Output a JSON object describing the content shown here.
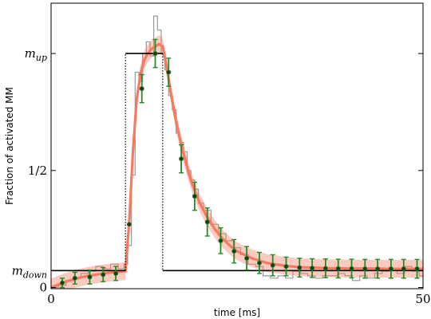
{
  "chart_data": {
    "type": "line",
    "xlabel": "time [ms]",
    "ylabel": "Fraction of activated MM",
    "xlim": [
      0,
      50
    ],
    "ylim": [
      -0.005,
      1.215
    ],
    "x_ticks": [
      {
        "value": 0,
        "label": "0"
      },
      {
        "value": 50,
        "label": "50"
      }
    ],
    "y_ticks": [
      {
        "value": 0,
        "label": "0"
      },
      {
        "value": 0.0724,
        "label": "m",
        "sub": "down"
      },
      {
        "value": 0.5,
        "label": "1/2"
      },
      {
        "value": 1.0,
        "label": "m",
        "sub": "up"
      }
    ],
    "stimulus_levels": {
      "m_down": 0.0724,
      "m_up": 1.0,
      "on_time_ms": 10,
      "off_time_ms": 15
    },
    "series": [
      {
        "role": "noisy-trace",
        "color": "#999999",
        "x": [
          0,
          1,
          2,
          3,
          4,
          5,
          6,
          7,
          8,
          9,
          9.8,
          10.3,
          10.8,
          11.3,
          11.8,
          12.3,
          12.8,
          13.3,
          13.8,
          14.3,
          14.8,
          15.3,
          15.8,
          16.3,
          16.8,
          17.3,
          17.8,
          18.3,
          18.8,
          19.3,
          19.8,
          20.5,
          21.5,
          22.5,
          23.5,
          24.5,
          25.5,
          26.5,
          27.5,
          28.5,
          29.5,
          30.5,
          31.5,
          32.5,
          33.5,
          34.5,
          35.5,
          36.5,
          37.5,
          38.5,
          39.5,
          40.5,
          41.5,
          42.5,
          43.5,
          44.5,
          45.5,
          46.5,
          47.5,
          48.5,
          49.5,
          50
        ],
        "y": [
          0.0,
          0.01,
          0.03,
          0.04,
          0.06,
          0.07,
          0.09,
          0.08,
          0.1,
          0.08,
          0.1,
          0.18,
          0.48,
          0.92,
          0.88,
          1.0,
          1.05,
          0.99,
          1.16,
          1.1,
          1.0,
          0.93,
          0.82,
          0.76,
          0.66,
          0.62,
          0.58,
          0.5,
          0.46,
          0.42,
          0.36,
          0.33,
          0.27,
          0.23,
          0.2,
          0.17,
          0.14,
          0.1,
          0.09,
          0.05,
          0.04,
          0.05,
          0.04,
          0.07,
          0.06,
          0.05,
          0.04,
          0.05,
          0.05,
          0.06,
          0.05,
          0.03,
          0.05,
          0.04,
          0.06,
          0.07,
          0.08,
          0.06,
          0.09,
          0.07,
          0.05,
          0.08
        ]
      },
      {
        "role": "mean-band",
        "color": "#f47a62",
        "band_halfwidth": 0.038,
        "x": [
          0,
          1,
          2,
          3,
          4,
          5,
          6,
          7,
          8,
          9,
          10,
          10.5,
          11,
          11.5,
          12,
          12.5,
          13,
          13.5,
          14,
          14.5,
          15,
          15.5,
          16,
          16.5,
          17,
          17.5,
          18,
          18.5,
          19,
          19.5,
          20,
          21,
          22,
          23,
          24,
          25,
          26,
          27,
          28,
          29,
          30,
          31,
          32,
          33,
          34,
          35,
          36,
          37,
          38,
          39,
          40,
          41,
          42,
          43,
          44,
          45,
          46,
          47,
          48,
          49,
          50
        ],
        "y": [
          0.0,
          0.013,
          0.025,
          0.035,
          0.043,
          0.05,
          0.055,
          0.06,
          0.064,
          0.067,
          0.07,
          0.28,
          0.58,
          0.8,
          0.91,
          0.97,
          1.0,
          1.02,
          1.03,
          1.04,
          1.03,
          0.95,
          0.85,
          0.76,
          0.68,
          0.61,
          0.55,
          0.49,
          0.44,
          0.4,
          0.36,
          0.3,
          0.25,
          0.21,
          0.18,
          0.155,
          0.14,
          0.125,
          0.115,
          0.105,
          0.1,
          0.095,
          0.091,
          0.088,
          0.086,
          0.085,
          0.084,
          0.083,
          0.082,
          0.082,
          0.081,
          0.081,
          0.081,
          0.081,
          0.081,
          0.08,
          0.08,
          0.08,
          0.08,
          0.08,
          0.08
        ]
      },
      {
        "role": "data-points",
        "color": "#228b22",
        "points": [
          {
            "x": 1.5,
            "y": 0.02,
            "err": 0.02
          },
          {
            "x": 3.2,
            "y": 0.04,
            "err": 0.025
          },
          {
            "x": 5.2,
            "y": 0.045,
            "err": 0.03
          },
          {
            "x": 7.0,
            "y": 0.055,
            "err": 0.03
          },
          {
            "x": 8.7,
            "y": 0.06,
            "err": 0.03
          },
          {
            "x": 10.5,
            "y": 0.27,
            "err": 0.0
          },
          {
            "x": 12.2,
            "y": 0.85,
            "err": 0.06
          },
          {
            "x": 14.0,
            "y": 1.0,
            "err": 0.06
          },
          {
            "x": 15.8,
            "y": 0.92,
            "err": 0.06
          },
          {
            "x": 17.5,
            "y": 0.55,
            "err": 0.06
          },
          {
            "x": 19.3,
            "y": 0.39,
            "err": 0.06
          },
          {
            "x": 21.0,
            "y": 0.28,
            "err": 0.06
          },
          {
            "x": 22.8,
            "y": 0.2,
            "err": 0.055
          },
          {
            "x": 24.6,
            "y": 0.155,
            "err": 0.05
          },
          {
            "x": 26.3,
            "y": 0.125,
            "err": 0.05
          },
          {
            "x": 28.0,
            "y": 0.105,
            "err": 0.045
          },
          {
            "x": 29.8,
            "y": 0.095,
            "err": 0.045
          },
          {
            "x": 31.6,
            "y": 0.09,
            "err": 0.04
          },
          {
            "x": 33.4,
            "y": 0.085,
            "err": 0.04
          },
          {
            "x": 35.1,
            "y": 0.083,
            "err": 0.04
          },
          {
            "x": 36.9,
            "y": 0.082,
            "err": 0.04
          },
          {
            "x": 38.6,
            "y": 0.081,
            "err": 0.04
          },
          {
            "x": 40.4,
            "y": 0.081,
            "err": 0.04
          },
          {
            "x": 42.2,
            "y": 0.08,
            "err": 0.04
          },
          {
            "x": 43.9,
            "y": 0.08,
            "err": 0.04
          },
          {
            "x": 45.7,
            "y": 0.08,
            "err": 0.04
          },
          {
            "x": 47.4,
            "y": 0.08,
            "err": 0.04
          },
          {
            "x": 49.2,
            "y": 0.08,
            "err": 0.04
          }
        ]
      }
    ]
  }
}
